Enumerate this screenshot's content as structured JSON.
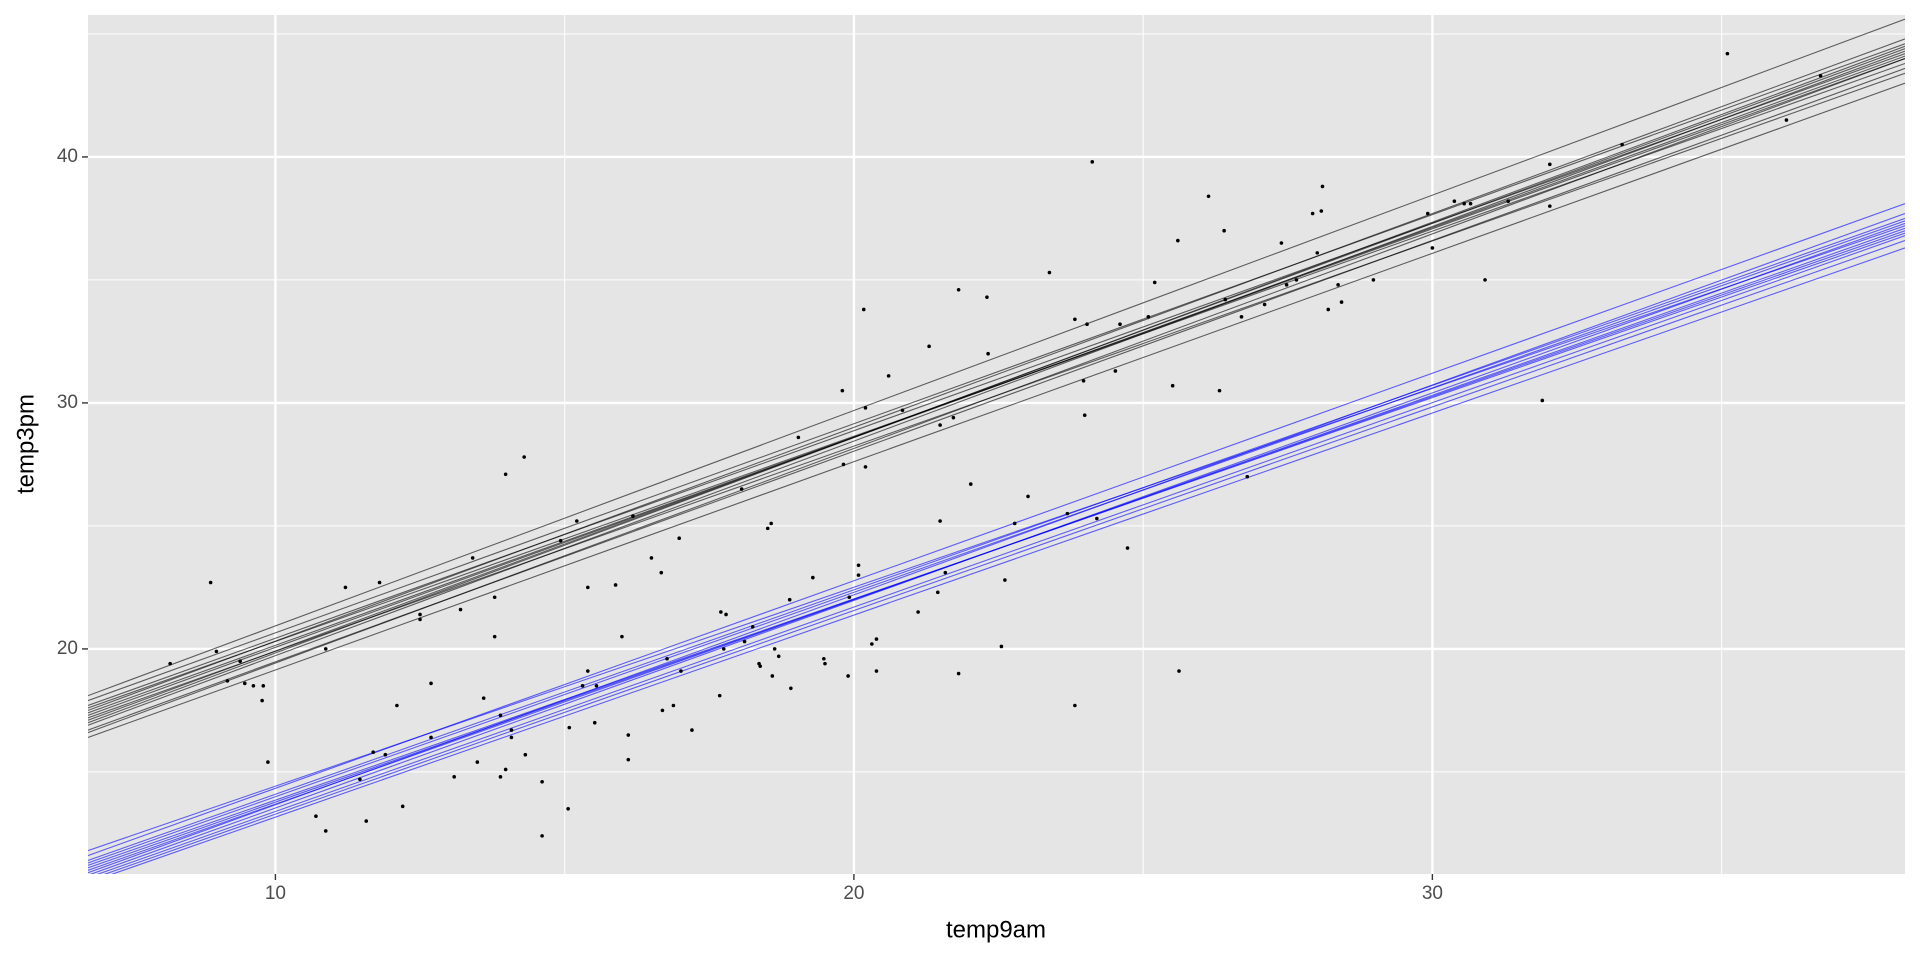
{
  "chart_data": {
    "type": "scatter",
    "x_label": "temp9am",
    "y_label": "temp3pm",
    "xlim": [
      6.76,
      38.17
    ],
    "ylim": [
      10.85,
      45.77
    ],
    "xticks": [
      10,
      20,
      30
    ],
    "yticks": [
      20,
      30,
      40
    ],
    "minor_xticks": [
      15,
      25,
      35
    ],
    "minor_yticks": [
      15,
      25,
      35,
      45
    ],
    "grid": true,
    "point_color": "#000000",
    "x": [
      8.18,
      8.88,
      8.98,
      9.17,
      9.39,
      9.47,
      9.62,
      9.77,
      9.79,
      9.87,
      10.87,
      10.7,
      10.87,
      11.21,
      11.46,
      11.57,
      11.69,
      11.8,
      11.9,
      12.1,
      12.2,
      12.5,
      12.5,
      12.69,
      12.69,
      13.09,
      13.2,
      13.41,
      13.49,
      13.6,
      13.79,
      13.79,
      13.89,
      13.89,
      13.98,
      13.98,
      14.08,
      14.08,
      14.3,
      14.32,
      14.61,
      14.61,
      14.93,
      15.06,
      15.08,
      15.21,
      15.31,
      15.4,
      15.4,
      15.52,
      15.55,
      15.88,
      15.99,
      16.1,
      16.1,
      16.18,
      16.5,
      16.67,
      16.69,
      16.77,
      16.88,
      16.98,
      17.01,
      17.2,
      17.68,
      17.7,
      17.79,
      17.75,
      18.06,
      18.11,
      18.25,
      18.36,
      18.38,
      18.51,
      18.57,
      18.59,
      18.63,
      18.7,
      18.89,
      18.91,
      19.04,
      19.29,
      19.48,
      19.5,
      19.8,
      19.82,
      19.92,
      19.9,
      20.08,
      20.08,
      20.17,
      20.2,
      20.2,
      20.31,
      20.39,
      20.39,
      20.6,
      20.84,
      21.11,
      21.3,
      21.45,
      21.49,
      21.49,
      21.58,
      21.72,
      21.81,
      21.81,
      22.02,
      22.3,
      22.32,
      22.55,
      22.61,
      22.78,
      23.01,
      23.38,
      23.69,
      23.82,
      23.82,
      23.97,
      23.99,
      24.03,
      24.12,
      24.2,
      24.52,
      24.6,
      24.73,
      25.09,
      25.2,
      25.51,
      25.6,
      25.62,
      26.13,
      26.32,
      26.4,
      26.42,
      26.7,
      26.8,
      27.1,
      27.39,
      27.48,
      27.65,
      27.93,
      28.01,
      28.08,
      28.1,
      28.2,
      28.37,
      28.43,
      28.98,
      29.92,
      30.0,
      30.38,
      30.55,
      30.66,
      30.91,
      31.31,
      31.9,
      32.03,
      32.03,
      33.28,
      35.1,
      36.12,
      36.71
    ],
    "y": [
      19.4,
      22.7,
      19.9,
      18.7,
      19.5,
      18.6,
      18.5,
      17.9,
      18.5,
      15.4,
      20.0,
      13.2,
      12.6,
      22.5,
      14.7,
      13.0,
      15.8,
      22.7,
      15.7,
      17.7,
      13.6,
      21.4,
      21.2,
      18.6,
      16.4,
      14.8,
      21.6,
      23.7,
      15.4,
      18.0,
      20.5,
      22.1,
      14.8,
      17.3,
      27.1,
      15.1,
      16.7,
      16.4,
      27.8,
      15.7,
      14.6,
      12.4,
      24.4,
      13.5,
      16.8,
      25.2,
      18.5,
      22.5,
      19.1,
      17.0,
      18.5,
      22.6,
      20.5,
      16.5,
      15.5,
      25.4,
      23.7,
      23.1,
      17.5,
      19.6,
      17.7,
      24.5,
      19.1,
      16.7,
      18.1,
      21.5,
      21.4,
      20.0,
      26.5,
      20.3,
      20.9,
      19.4,
      19.3,
      24.9,
      25.1,
      18.9,
      20.0,
      19.7,
      22.0,
      18.4,
      28.6,
      22.9,
      19.6,
      19.4,
      30.5,
      27.5,
      22.1,
      18.9,
      23.4,
      23.0,
      33.8,
      29.8,
      27.4,
      20.2,
      20.4,
      19.1,
      31.1,
      29.7,
      21.5,
      32.3,
      22.3,
      29.1,
      25.2,
      23.1,
      29.4,
      34.6,
      19.0,
      26.7,
      34.3,
      32.0,
      20.1,
      22.8,
      25.1,
      26.2,
      35.3,
      25.5,
      33.4,
      17.7,
      30.9,
      29.5,
      33.2,
      39.8,
      25.3,
      31.3,
      33.2,
      24.1,
      33.5,
      34.9,
      30.7,
      36.6,
      19.1,
      38.4,
      30.5,
      37.0,
      34.2,
      33.5,
      27.0,
      34.0,
      36.5,
      34.8,
      35.0,
      37.7,
      36.1,
      37.8,
      38.8,
      33.8,
      34.8,
      34.1,
      35.0,
      37.7,
      36.3,
      38.2,
      38.1,
      38.1,
      35.0,
      38.2,
      30.1,
      38.0,
      39.7,
      40.5,
      44.2,
      41.5,
      43.3
    ],
    "line_x": [
      6.76,
      38.17
    ],
    "lines": [
      {
        "color": "#000000",
        "values": [
          17.3,
          44.1
        ]
      },
      {
        "color": "#000000",
        "values": [
          16.7,
          43.6
        ]
      },
      {
        "color": "#000000",
        "values": [
          17.9,
          44.6
        ]
      },
      {
        "color": "#000000",
        "values": [
          17.1,
          44.4
        ]
      },
      {
        "color": "#000000",
        "values": [
          17.6,
          43.8
        ]
      },
      {
        "color": "#000000",
        "values": [
          16.9,
          44.3
        ]
      },
      {
        "color": "#000000",
        "values": [
          17.5,
          44.8
        ]
      },
      {
        "color": "#000000",
        "values": [
          17.2,
          43.4
        ]
      },
      {
        "color": "#000000",
        "values": [
          18.1,
          45.6
        ]
      },
      {
        "color": "#000000",
        "values": [
          16.4,
          43.0
        ]
      },
      {
        "color": "#000000",
        "values": [
          17.4,
          44.0
        ]
      },
      {
        "color": "#000000",
        "values": [
          17.0,
          44.5
        ]
      },
      {
        "color": "#000000",
        "values": [
          17.7,
          44.2
        ]
      },
      {
        "color": "#000000",
        "values": [
          16.6,
          44.0
        ]
      },
      {
        "color": "#0000ff",
        "values": [
          11.0,
          37.1
        ]
      },
      {
        "color": "#0000ff",
        "values": [
          10.6,
          36.6
        ]
      },
      {
        "color": "#0000ff",
        "values": [
          11.4,
          37.5
        ]
      },
      {
        "color": "#0000ff",
        "values": [
          10.8,
          37.3
        ]
      },
      {
        "color": "#0000ff",
        "values": [
          11.2,
          36.9
        ]
      },
      {
        "color": "#0000ff",
        "values": [
          10.5,
          36.3
        ]
      },
      {
        "color": "#0000ff",
        "values": [
          11.6,
          38.1
        ]
      },
      {
        "color": "#0000ff",
        "values": [
          10.9,
          37.7
        ]
      },
      {
        "color": "#0000ff",
        "values": [
          11.1,
          37.0
        ]
      },
      {
        "color": "#0000ff",
        "values": [
          10.7,
          36.8
        ]
      },
      {
        "color": "#0000ff",
        "values": [
          11.3,
          37.4
        ]
      },
      {
        "color": "#0000ff",
        "values": [
          11.8,
          37.2
        ]
      }
    ]
  }
}
